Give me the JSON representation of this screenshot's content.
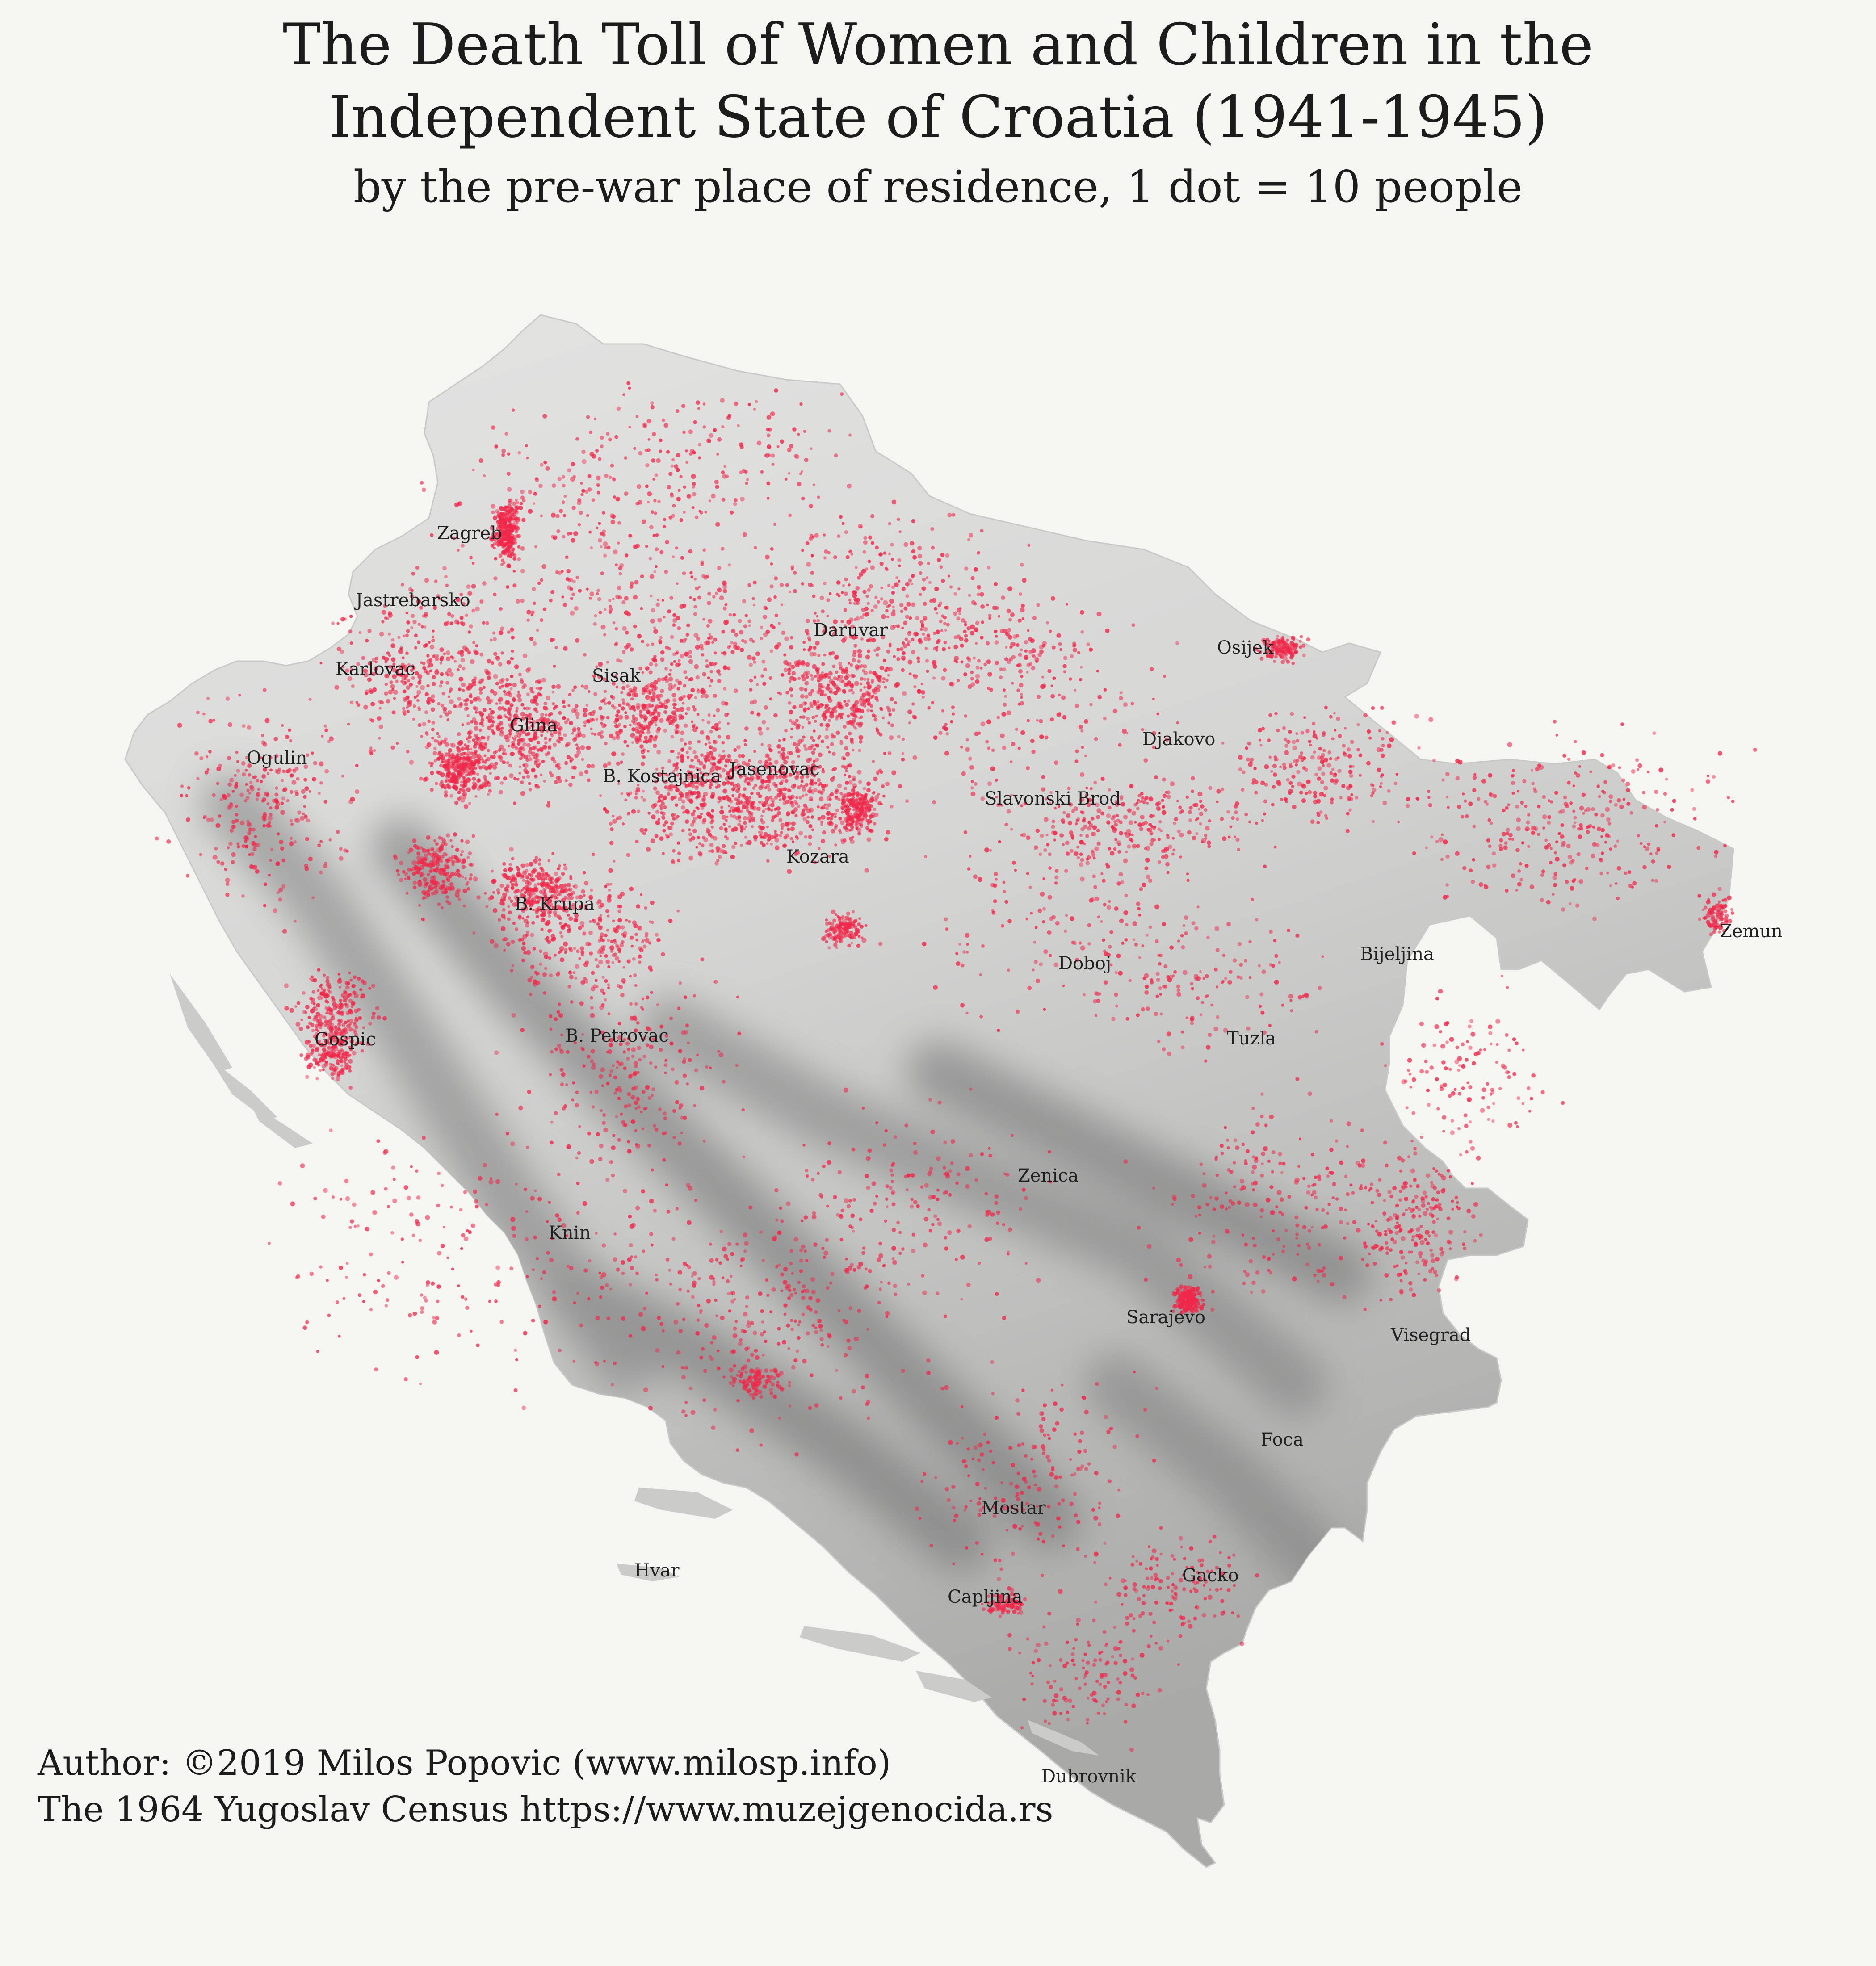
{
  "title": {
    "line1": "The Death Toll of Women and Children in the",
    "line2": "Independent State of Croatia (1941-1945)",
    "subtitle": "by the pre-war place of residence, 1 dot = 10 people"
  },
  "credits": {
    "author": "Author: ©2019 Milos Popovic (www.milosp.info)",
    "source": "The 1964 Yugoslav Census https://www.muzejgenocida.rs"
  },
  "colors": {
    "background": "#f5f5f1",
    "dot": "#f0284a",
    "land_light": "#dcdcdb",
    "land_dark": "#8e8e8e",
    "text": "#1c1c1c"
  },
  "cities": [
    "Zagreb",
    "Jastrebarsko",
    "Karlovac",
    "Ogulin",
    "Sisak",
    "Glina",
    "Daruvar",
    "Osijek",
    "Djakovo",
    "B. Kostajnica",
    "Jasenovac",
    "Slavonski Brod",
    "Kozara",
    "B. Krupa",
    "Zemun",
    "Doboj",
    "Bijeljina",
    "Gospic",
    "B. Petrovac",
    "Tuzla",
    "Zenica",
    "Knin",
    "Sarajevo",
    "Visegrad",
    "Foca",
    "Mostar",
    "Hvar",
    "Gacko",
    "Capljina",
    "Dubrovnik"
  ]
}
